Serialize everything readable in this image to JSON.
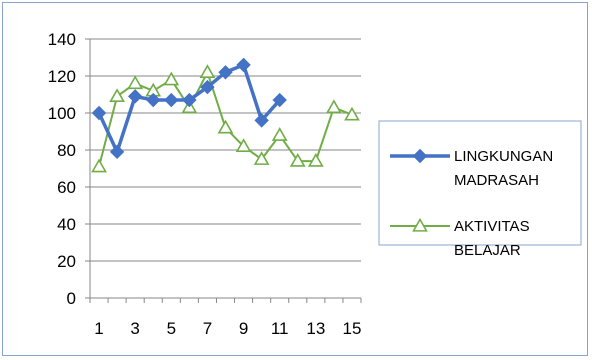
{
  "chart_data": {
    "type": "line",
    "title": "",
    "xlabel": "",
    "ylabel": "",
    "x": [
      1,
      2,
      3,
      4,
      5,
      6,
      7,
      8,
      9,
      10,
      11,
      12,
      13,
      14,
      15
    ],
    "x_tick_labels": [
      "1",
      "3",
      "5",
      "7",
      "9",
      "11",
      "13",
      "15"
    ],
    "y_tick_labels": [
      "0",
      "20",
      "40",
      "60",
      "80",
      "100",
      "120",
      "140"
    ],
    "ylim": [
      0,
      140
    ],
    "y_major_step": 20,
    "grid": "horizontal",
    "legend_position": "right",
    "series": [
      {
        "name_lines": [
          "LINGKUNGAN",
          "MADRASAH"
        ],
        "color": "#4472c4",
        "marker": "diamond",
        "values": [
          100,
          79,
          109,
          107,
          107,
          107,
          114,
          122,
          126,
          96,
          107,
          null,
          null,
          null,
          null
        ]
      },
      {
        "name_lines": [
          "AKTIVITAS",
          "BELAJAR"
        ],
        "color": "#70ad47",
        "marker": "triangle-open",
        "values": [
          71,
          109,
          116,
          112,
          118,
          103,
          122,
          92,
          82,
          75,
          88,
          74,
          74,
          103,
          99
        ]
      }
    ]
  }
}
